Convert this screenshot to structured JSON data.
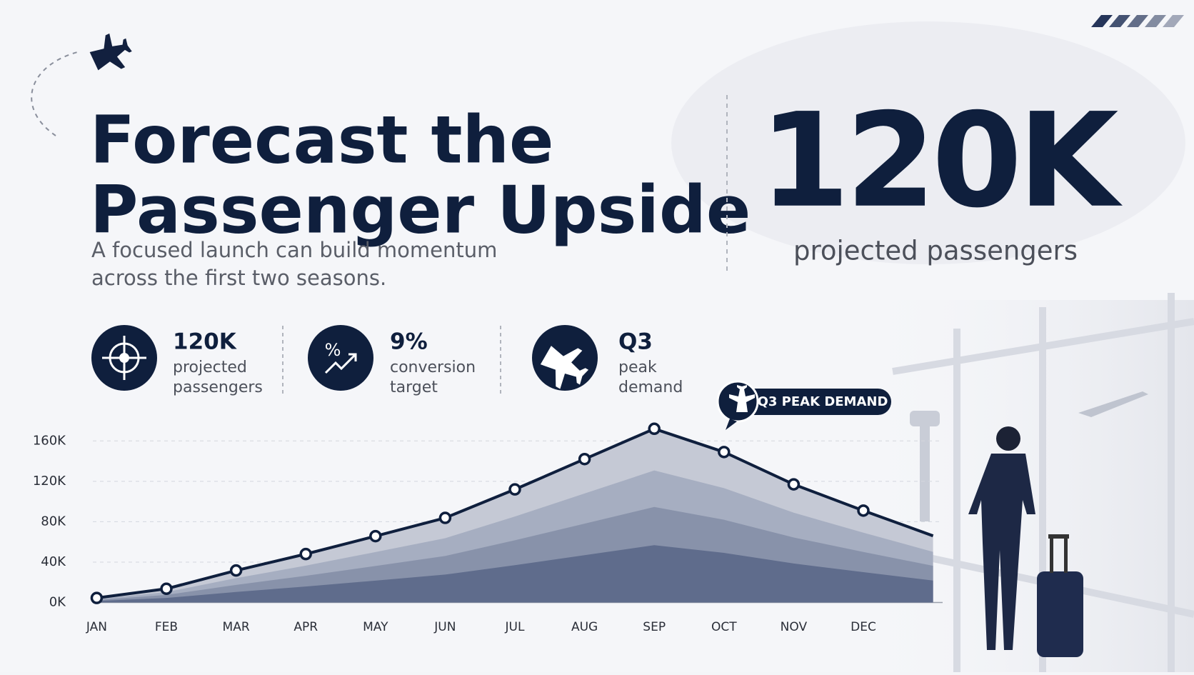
{
  "header": {
    "title_lines": [
      "Forecast the",
      "Passenger Upside"
    ],
    "subtitle_lines": [
      "A focused launch can build momentum",
      "across the first two seasons."
    ]
  },
  "headline": {
    "value": "120K",
    "label": "projected passengers"
  },
  "stats": [
    {
      "value": "120K",
      "label_lines": [
        "projected",
        "passengers"
      ]
    },
    {
      "value": "9%",
      "label_lines": [
        "conversion",
        "target"
      ]
    },
    {
      "value": "Q3",
      "label_lines": [
        "peak",
        "demand"
      ]
    }
  ],
  "callout": "Q3 PEAK DEMAND",
  "chart_data": {
    "type": "area",
    "categories": [
      "JAN",
      "FEB",
      "MAR",
      "APR",
      "MAY",
      "JUN",
      "JUL",
      "AUG",
      "SEP",
      "OCT",
      "NOV",
      "DEC",
      null
    ],
    "values": [
      4500,
      13600,
      31700,
      48000,
      65700,
      83800,
      112000,
      142000,
      172000,
      149000,
      117000,
      91000,
      66000
    ],
    "color": "#0f1f3d",
    "ylim": [
      0,
      180000
    ],
    "yticks": [
      {
        "value": 0,
        "label": "0K"
      },
      {
        "value": 40000,
        "label": "40K"
      },
      {
        "value": 80000,
        "label": "80K"
      },
      {
        "value": 120000,
        "label": "120K"
      },
      {
        "value": 160000,
        "label": "160K"
      }
    ],
    "grid": true
  }
}
